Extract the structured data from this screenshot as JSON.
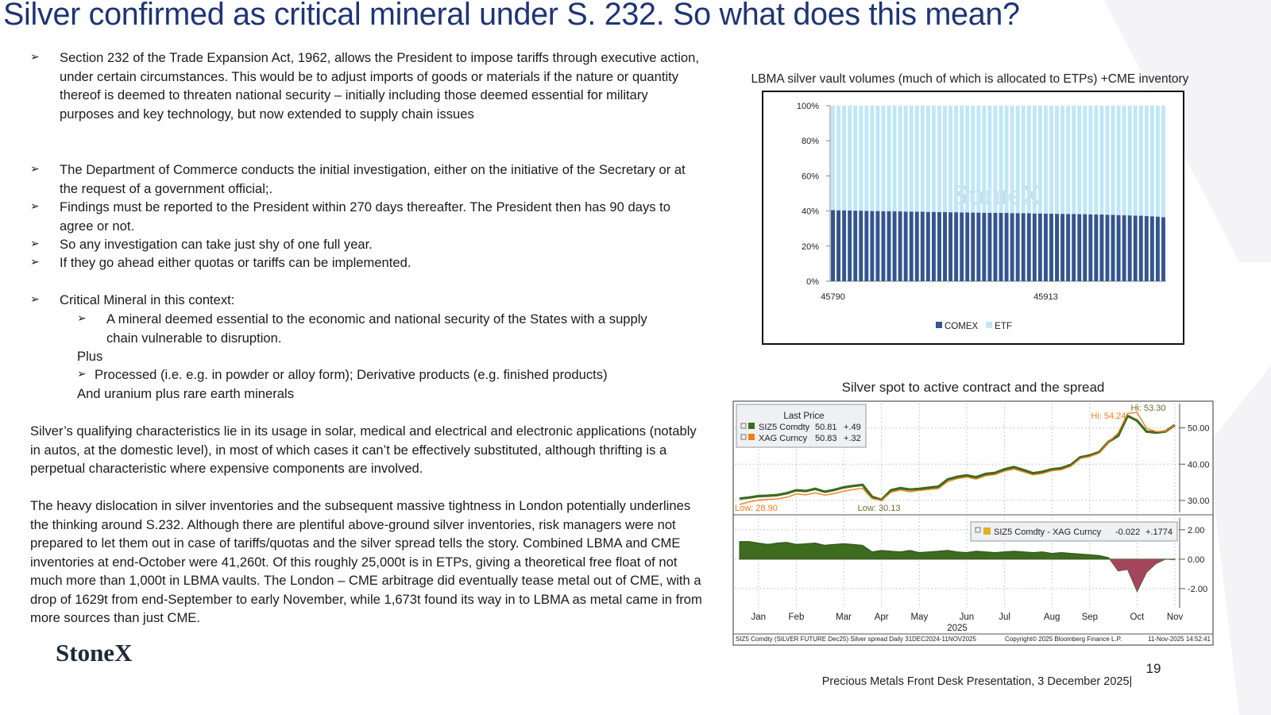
{
  "title": "Silver confirmed as critical mineral under S. 232.  So what does this mean?",
  "bullets": [
    "Section 232 of the Trade Expansion Act, 1962, allows the President to impose tariffs through executive action, under certain circumstances.  This would be to adjust imports of goods or materials if the nature or quantity thereof is deemed to threaten national security – initially including those deemed essential for military purposes and key technology, but now extended to supply chain issues",
    "The Department of Commerce conducts the initial investigation, either on the initiative of the Secretary or at the request of a government official;.",
    "Findings must be reported to the President within 270 days thereafter.  The President then has 90 days to agree or not.",
    "So any investigation can take just shy of one full year.",
    "If they go ahead either quotas or tariffs can be implemented.",
    "Critical Mineral in this context:"
  ],
  "sub_bullet": "A mineral deemed essential to the economic and national security of the States with a supply chain vulnerable to disruption.",
  "plus": "Plus",
  "plus_bullet": "Processed (i.e. e.g. in powder or alloy form); Derivative products (e.g.  finished products)",
  "and_line": "And uranium plus rare earth minerals",
  "paragraphs": [
    "Silver’s qualifying characteristics lie in its usage in solar, medical and electrical and electronic applications (notably in autos, at the domestic level), in most of which cases it can’t be effectively substituted, although thrifting is a perpetual characteristic where expensive components are involved.",
    "The heavy dislocation in silver inventories and the subsequent massive tightness in London potentially underlines the thinking around S.232.  Although there are plentiful above-ground silver inventories, risk managers were not prepared to let them out in case of tariffs/quotas and the silver spread tells the story.  Combined LBMA and CME inventories at end-October were 41,260t.  Of this roughly 25,000t is in ETPs, giving a theoretical free float of not much more than 1,000t in LBMA vaults.  The London – CME arbitrage did eventually tease metal out of CME, with a drop of 1629t from end-September to early November, while 1,673t found its way in to LBMA as metal came in from more sources than just CME."
  ],
  "logo": "StoneX",
  "page_number": "19",
  "footer": "Precious Metals Front Desk Presentation, 3 December 2025|",
  "chart_data": [
    {
      "type": "bar",
      "stacked": true,
      "title": "LBMA silver vault volumes (much of which is allocated to ETPs) +CME inventory",
      "watermark": "StoneX",
      "categories": [
        "45790",
        null,
        null,
        null,
        null,
        null,
        null,
        null,
        null,
        null,
        null,
        null,
        null,
        null,
        null,
        null,
        null,
        null,
        null,
        null,
        null,
        null,
        null,
        null,
        null,
        null,
        null,
        null,
        null,
        null,
        null,
        null,
        null,
        null,
        null,
        null,
        null,
        null,
        "45913",
        null,
        null,
        null,
        null,
        null,
        null,
        null,
        null,
        null,
        null,
        null,
        null,
        null,
        null,
        null,
        null,
        null,
        null,
        null,
        null,
        null
      ],
      "series": [
        {
          "name": "COMEX",
          "color": "#34558f",
          "values": [
            40.5,
            40.4,
            40.4,
            40.3,
            40.2,
            40.2,
            40.1,
            40.0,
            40.0,
            39.9,
            39.9,
            39.8,
            39.8,
            39.7,
            39.7,
            39.6,
            39.6,
            39.5,
            39.5,
            39.4,
            39.4,
            39.3,
            39.3,
            39.2,
            39.2,
            39.1,
            39.1,
            39.0,
            39.0,
            39.0,
            38.9,
            38.9,
            38.8,
            38.8,
            38.7,
            38.7,
            38.6,
            38.6,
            38.5,
            38.5,
            38.4,
            38.4,
            38.3,
            38.3,
            38.2,
            38.2,
            38.1,
            38.0,
            38.0,
            37.9,
            37.8,
            37.7,
            37.6,
            37.5,
            37.4,
            37.3,
            37.2,
            37.0,
            36.8,
            36.5
          ]
        },
        {
          "name": "ETF",
          "color": "#bfe7f6",
          "values": [
            59.5,
            59.6,
            59.6,
            59.7,
            59.8,
            59.8,
            59.9,
            60.0,
            60.0,
            60.1,
            60.1,
            60.2,
            60.2,
            60.3,
            60.3,
            60.4,
            60.4,
            60.5,
            60.5,
            60.6,
            60.6,
            60.7,
            60.7,
            60.8,
            60.8,
            60.9,
            60.9,
            61.0,
            61.0,
            61.0,
            61.1,
            61.1,
            61.2,
            61.2,
            61.3,
            61.3,
            61.4,
            61.4,
            61.5,
            61.5,
            61.6,
            61.6,
            61.7,
            61.7,
            61.8,
            61.8,
            61.9,
            62.0,
            62.0,
            62.1,
            62.2,
            62.3,
            62.4,
            62.5,
            62.6,
            62.7,
            62.8,
            63.0,
            63.2,
            63.5
          ]
        }
      ],
      "ylim": [
        0,
        100
      ],
      "yticks": [
        {
          "value": 0,
          "label": "0%"
        },
        {
          "value": 20,
          "label": "20%"
        },
        {
          "value": 40,
          "label": "40%"
        },
        {
          "value": 60,
          "label": "60%"
        },
        {
          "value": 80,
          "label": "80%"
        },
        {
          "value": 100,
          "label": "100%"
        }
      ]
    },
    {
      "type": "line",
      "title": "Silver spot to active contract and the spread",
      "legend_title": "Last Price",
      "series": [
        {
          "name": "SIZ5 Comdty",
          "color": "#3d6b1f",
          "last_label": "50.81",
          "change": "+.49",
          "high_label": "Hi: 53.30",
          "low_label": "Low: 30.13",
          "values": [
            30.5,
            30.8,
            31.2,
            31.3,
            31.5,
            32.0,
            32.8,
            32.6,
            33.2,
            32.4,
            32.9,
            33.6,
            34.0,
            34.3,
            31.0,
            30.13,
            32.8,
            33.4,
            33.0,
            33.2,
            33.5,
            33.8,
            35.8,
            36.5,
            36.9,
            36.4,
            37.3,
            37.6,
            38.6,
            39.2,
            38.4,
            37.5,
            37.9,
            38.6,
            38.9,
            39.8,
            41.9,
            42.4,
            43.3,
            46.2,
            47.8,
            53.3,
            52.0,
            49.0,
            48.7,
            49.0,
            50.81
          ]
        },
        {
          "name": "XAG Curncy",
          "color": "#f07d1a",
          "last_label": "50.83",
          "change": "+.32",
          "high_label": "Hi: 54.24",
          "low_label": "Low: 28.90",
          "values": [
            28.9,
            29.6,
            30.1,
            30.3,
            30.4,
            30.85,
            31.8,
            31.55,
            32.1,
            31.45,
            31.9,
            32.55,
            33.0,
            33.35,
            30.5,
            30.0,
            32.25,
            32.9,
            32.4,
            32.75,
            33.0,
            33.25,
            35.2,
            36.0,
            36.45,
            35.85,
            36.8,
            37.15,
            38.1,
            38.65,
            37.9,
            37.05,
            37.4,
            38.2,
            38.45,
            39.4,
            41.55,
            42.1,
            43.05,
            46.1,
            48.6,
            54.0,
            54.24,
            49.9,
            49.0,
            49.0,
            50.83
          ]
        }
      ],
      "ylim": [
        26.7,
        56.7
      ],
      "yticks": [
        {
          "value": 30,
          "label": "30.00"
        },
        {
          "value": 40,
          "label": "40.00"
        },
        {
          "value": 50,
          "label": "50.00"
        }
      ],
      "grid": true
    },
    {
      "type": "area",
      "categories": [
        null,
        null,
        "Jan",
        null,
        null,
        null,
        "Feb",
        null,
        null,
        null,
        null,
        "Mar",
        null,
        null,
        null,
        "Apr",
        null,
        null,
        null,
        "May",
        null,
        null,
        null,
        null,
        "Jun",
        null,
        null,
        null,
        "Jul",
        null,
        null,
        null,
        null,
        "Aug",
        null,
        null,
        null,
        "Sep",
        null,
        null,
        null,
        null,
        "Oct",
        null,
        null,
        null,
        "Nov"
      ],
      "x_sublabel": "2025",
      "series": [
        {
          "name": "SIZ5 Comdty - XAG Curncy",
          "color": "#3d6b1f",
          "negative_color": "#a3465c",
          "last_label": "-0.022",
          "change": "+.1774",
          "values": [
            1.2,
            1.2,
            1.1,
            1.0,
            1.1,
            1.15,
            1.0,
            1.05,
            1.1,
            0.95,
            1.0,
            1.05,
            1.0,
            0.95,
            0.5,
            0.6,
            0.55,
            0.5,
            0.6,
            0.45,
            0.5,
            0.55,
            0.6,
            0.5,
            0.45,
            0.55,
            0.5,
            0.45,
            0.5,
            0.55,
            0.5,
            0.45,
            0.5,
            0.4,
            0.45,
            0.4,
            0.35,
            0.3,
            0.25,
            0.1,
            -0.8,
            -0.7,
            -2.2,
            -0.9,
            -0.3,
            0.0,
            -0.022
          ]
        }
      ],
      "ylim": [
        -3.3,
        2.8
      ],
      "yticks": [
        {
          "value": -2,
          "label": "-2.00"
        },
        {
          "value": 0,
          "label": "0.00"
        },
        {
          "value": 2,
          "label": "2.00"
        }
      ],
      "grid": true,
      "source": [
        "SIZ5 Comdty (SILVER FUTURE   Dec25) Silver spread Daily 31DEC2024-11NOV2025",
        "Copyright© 2025 Bloomberg Finance L.P.",
        "11-Nov-2025 14:52:41"
      ]
    }
  ]
}
